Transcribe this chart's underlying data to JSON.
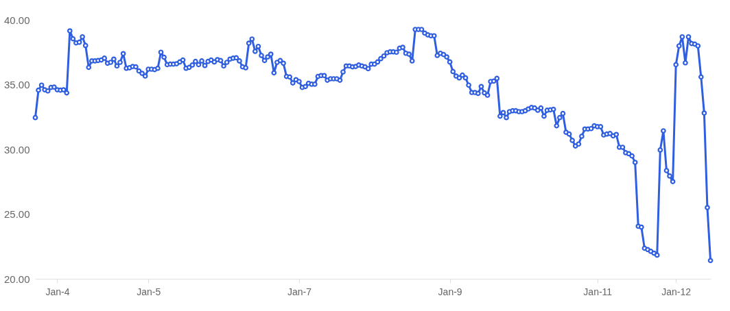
{
  "chart_data": {
    "type": "line",
    "categories": [
      null,
      null,
      null,
      null,
      null,
      null,
      null,
      "Jan-4",
      null,
      null,
      null,
      null,
      null,
      null,
      null,
      null,
      null,
      null,
      null,
      null,
      null,
      null,
      null,
      null,
      null,
      null,
      null,
      null,
      null,
      null,
      null,
      null,
      null,
      null,
      null,
      null,
      "Jan-5",
      null,
      null,
      null,
      null,
      null,
      null,
      null,
      null,
      null,
      null,
      null,
      null,
      null,
      null,
      null,
      null,
      null,
      null,
      null,
      null,
      null,
      null,
      null,
      null,
      null,
      null,
      null,
      null,
      null,
      null,
      null,
      null,
      null,
      null,
      null,
      null,
      null,
      null,
      null,
      null,
      null,
      null,
      null,
      null,
      null,
      null,
      null,
      "Jan-7",
      null,
      null,
      null,
      null,
      null,
      null,
      null,
      null,
      null,
      null,
      null,
      null,
      null,
      null,
      null,
      null,
      null,
      null,
      null,
      null,
      null,
      null,
      null,
      null,
      null,
      null,
      null,
      null,
      null,
      null,
      null,
      null,
      null,
      null,
      null,
      null,
      null,
      null,
      null,
      null,
      null,
      null,
      null,
      null,
      null,
      null,
      null,
      "Jan-9",
      null,
      null,
      null,
      null,
      null,
      null,
      null,
      null,
      null,
      null,
      null,
      null,
      null,
      null,
      null,
      null,
      null,
      null,
      null,
      null,
      null,
      null,
      null,
      null,
      null,
      null,
      null,
      null,
      null,
      null,
      null,
      null,
      null,
      null,
      null,
      null,
      null,
      null,
      null,
      null,
      null,
      null,
      null,
      null,
      null,
      null,
      "Jan-11",
      null,
      null,
      null,
      null,
      null,
      null,
      null,
      null,
      null,
      null,
      null,
      null,
      null,
      null,
      null,
      null,
      null,
      null,
      null,
      null,
      null,
      null,
      null,
      null,
      "Jan-12",
      null,
      null,
      null,
      null,
      null,
      null,
      null,
      null,
      null,
      null,
      null
    ],
    "series": [
      {
        "color": "#2f5fe0",
        "values": [
          32.45,
          34.57,
          34.96,
          34.6,
          34.51,
          34.78,
          34.81,
          34.6,
          34.57,
          34.6,
          34.36,
          39.15,
          38.54,
          38.22,
          38.27,
          38.69,
          38.02,
          36.33,
          36.83,
          36.83,
          36.86,
          36.9,
          37.04,
          36.65,
          36.72,
          36.97,
          36.44,
          36.72,
          37.39,
          36.26,
          36.3,
          36.4,
          36.37,
          36.05,
          35.87,
          35.66,
          36.19,
          36.19,
          36.16,
          36.26,
          37.5,
          37.11,
          36.54,
          36.58,
          36.58,
          36.61,
          36.75,
          36.9,
          36.26,
          36.33,
          36.51,
          36.79,
          36.54,
          36.83,
          36.47,
          36.79,
          36.9,
          36.75,
          36.93,
          36.86,
          36.44,
          36.72,
          36.97,
          37.04,
          37.07,
          36.83,
          36.37,
          36.3,
          38.2,
          38.52,
          37.57,
          37.95,
          37.25,
          36.86,
          37.14,
          37.35,
          35.91,
          36.72,
          36.86,
          36.65,
          35.63,
          35.59,
          35.13,
          35.38,
          35.24,
          34.78,
          34.85,
          35.1,
          35.03,
          35.03,
          35.63,
          35.7,
          35.7,
          35.34,
          35.45,
          35.45,
          35.45,
          35.34,
          35.98,
          36.44,
          36.44,
          36.37,
          36.4,
          36.51,
          36.44,
          36.37,
          36.23,
          36.58,
          36.58,
          36.75,
          37.0,
          37.21,
          37.46,
          37.53,
          37.53,
          37.5,
          37.81,
          37.88,
          37.42,
          37.35,
          36.83,
          39.26,
          39.26,
          39.26,
          38.98,
          38.84,
          38.77,
          38.77,
          37.25,
          37.42,
          37.32,
          37.14,
          36.75,
          36.01,
          35.66,
          35.52,
          35.73,
          35.52,
          34.96,
          34.39,
          34.39,
          34.32,
          34.85,
          34.36,
          34.18,
          35.24,
          35.27,
          35.48,
          32.56,
          32.84,
          32.45,
          32.91,
          32.98,
          32.98,
          32.91,
          32.91,
          32.98,
          33.12,
          33.23,
          33.19,
          33.02,
          33.19,
          32.56,
          33.02,
          33.05,
          33.09,
          31.82,
          32.45,
          32.77,
          31.32,
          31.18,
          30.69,
          30.26,
          30.41,
          31.01,
          31.57,
          31.57,
          31.6,
          31.82,
          31.75,
          31.75,
          31.11,
          31.18,
          31.22,
          31.04,
          31.15,
          30.16,
          30.16,
          29.74,
          29.66,
          29.49,
          28.99,
          24.06,
          23.99,
          22.36,
          22.26,
          22.12,
          21.98,
          21.83,
          29.95,
          31.43,
          28.36,
          27.94,
          27.51,
          36.54,
          37.99,
          38.69,
          36.68,
          38.69,
          38.17,
          38.13,
          37.99,
          35.59,
          32.8,
          25.5,
          21.41
        ]
      }
    ],
    "ylim": [
      20,
      40
    ],
    "yticks": [
      {
        "value": 20,
        "label": "20.00"
      },
      {
        "value": 25,
        "label": "25.00"
      },
      {
        "value": 30,
        "label": "30.00"
      },
      {
        "value": 35,
        "label": "35.00"
      },
      {
        "value": 40,
        "label": "40.00"
      }
    ],
    "marker": "circle",
    "line_style": "solid",
    "grid": false,
    "legend": false
  }
}
